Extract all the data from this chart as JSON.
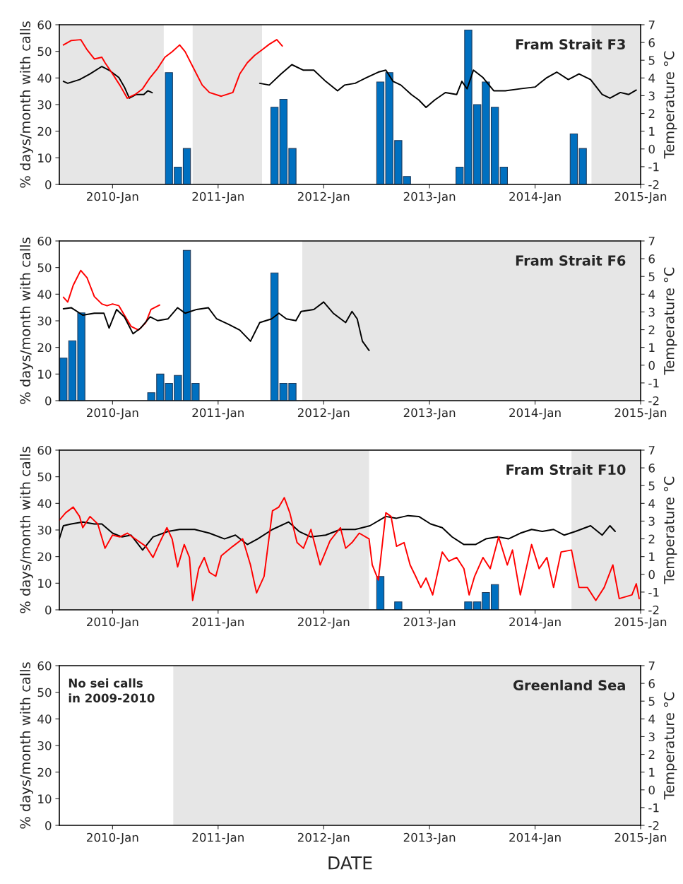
{
  "chart_data": [
    {
      "type": "bar",
      "title": "Fram Strait F3",
      "ylabel": "% days/month with calls",
      "y2label": "Temperature °C",
      "xlim": [
        "2009-07-01",
        "2015-01-01"
      ],
      "xticks": [
        {
          "value": "2010-01-01",
          "label": "2010-Jan"
        },
        {
          "value": "2011-01-01",
          "label": "2011-Jan"
        },
        {
          "value": "2012-01-01",
          "label": "2012-Jan"
        },
        {
          "value": "2013-01-01",
          "label": "2013-Jan"
        },
        {
          "value": "2014-01-01",
          "label": "2014-Jan"
        },
        {
          "value": "2015-01-01",
          "label": "2015-Jan"
        }
      ],
      "ylim": [
        0,
        60
      ],
      "yticks": [
        0,
        10,
        20,
        30,
        40,
        50,
        60
      ],
      "y2lim": [
        -2,
        7
      ],
      "y2ticks": [
        -2,
        -1,
        0,
        1,
        2,
        3,
        4,
        5,
        6,
        7
      ],
      "bands": [
        {
          "axis": "x",
          "from": "2009-07-01",
          "to": "2010-06-27",
          "color": "#e6e6e6"
        },
        {
          "axis": "x",
          "from": "2010-10-05",
          "to": "2011-06-02",
          "color": "#e6e6e6"
        },
        {
          "axis": "x",
          "from": "2014-07-15",
          "to": "2015-01-01",
          "color": "#e6e6e6"
        }
      ],
      "series": [
        {
          "color": "#0070c0",
          "x": [
            "2010-07-15",
            "2010-08-15",
            "2010-09-15",
            "2011-07-15",
            "2011-08-15",
            "2011-09-15",
            "2012-07-15",
            "2012-08-15",
            "2012-09-15",
            "2012-10-15",
            "2013-04-15",
            "2013-05-15",
            "2013-06-15",
            "2013-07-15",
            "2013-08-15",
            "2013-09-15",
            "2014-05-15",
            "2014-06-15"
          ],
          "values": [
            42,
            6.5,
            13.5,
            29,
            32,
            13.5,
            38.5,
            42,
            16.5,
            3,
            6.5,
            58,
            30,
            38.5,
            29,
            6.5,
            19,
            13.5
          ]
        },
        {
          "type": "line",
          "axis": "y2",
          "color": "#000000",
          "x": [
            "2009-07-15",
            "2009-07-30",
            "2009-09-09",
            "2009-10-15",
            "2009-11-25",
            "2009-12-20",
            "2010-01-23",
            "2010-02-11",
            "2010-02-28",
            "2010-03-24",
            "2010-04-19",
            "2010-05-03",
            "2010-05-18"
          ],
          "values": [
            3.81,
            3.7,
            3.91,
            4.23,
            4.65,
            4.44,
            4.02,
            3.49,
            2.86,
            3.07,
            3.07,
            3.28,
            3.17
          ]
        },
        {
          "type": "line",
          "axis": "y2",
          "color": "#ff0000",
          "x": [
            "2009-07-15",
            "2009-08-11",
            "2009-09-13",
            "2009-10-05",
            "2009-10-30",
            "2009-11-25",
            "2009-12-06",
            "2010-01-01",
            "2010-01-26",
            "2010-02-21",
            "2010-03-20",
            "2010-04-15",
            "2010-05-11",
            "2010-06-06",
            "2010-07-01",
            "2010-07-26",
            "2010-08-21",
            "2010-09-09",
            "2010-10-05",
            "2010-11-07",
            "2010-12-02",
            "2011-01-12",
            "2011-02-21",
            "2011-03-17",
            "2011-04-12",
            "2011-05-07",
            "2011-06-02",
            "2011-06-27",
            "2011-07-23",
            "2011-08-11"
          ],
          "values": [
            5.86,
            6.11,
            6.16,
            5.59,
            5.07,
            5.17,
            4.86,
            4.23,
            3.6,
            2.86,
            3.07,
            3.39,
            4.02,
            4.54,
            5.17,
            5.48,
            5.86,
            5.48,
            4.65,
            3.6,
            3.18,
            2.97,
            3.18,
            4.23,
            4.86,
            5.27,
            5.59,
            5.9,
            6.16,
            5.8
          ]
        },
        {
          "type": "line",
          "axis": "y2",
          "color": "#000000",
          "x": [
            "2011-05-25",
            "2011-06-27",
            "2011-08-07",
            "2011-09-13",
            "2011-10-23",
            "2011-11-28",
            "2012-01-08",
            "2012-02-18",
            "2012-03-13",
            "2012-04-19",
            "2012-05-28",
            "2012-07-08",
            "2012-08-03",
            "2012-08-28",
            "2012-09-24",
            "2012-10-30",
            "2012-11-25",
            "2012-12-20",
            "2013-01-19",
            "2013-02-25",
            "2013-04-05",
            "2013-04-23",
            "2013-05-11",
            "2013-06-02",
            "2013-07-05",
            "2013-08-11",
            "2013-09-20",
            "2013-11-11",
            "2014-01-01",
            "2014-02-11",
            "2014-03-17",
            "2014-04-26",
            "2014-06-02",
            "2014-07-12",
            "2014-08-21",
            "2014-09-17",
            "2014-10-23",
            "2014-11-21",
            "2014-12-17"
          ],
          "values": [
            3.7,
            3.6,
            4.23,
            4.75,
            4.44,
            4.44,
            3.81,
            3.28,
            3.6,
            3.7,
            4.02,
            4.33,
            4.44,
            3.81,
            3.6,
            3.07,
            2.76,
            2.34,
            2.76,
            3.18,
            3.07,
            3.81,
            3.39,
            4.44,
            4.02,
            3.28,
            3.28,
            3.39,
            3.49,
            4.02,
            4.33,
            3.91,
            4.23,
            3.91,
            3.07,
            2.86,
            3.18,
            3.07,
            3.32
          ]
        }
      ]
    },
    {
      "type": "bar",
      "title": "Fram Strait F6",
      "ylabel": "% days/month with calls",
      "y2label": "Temperature °C",
      "xlim": [
        "2009-07-01",
        "2015-01-01"
      ],
      "xticks": [
        {
          "value": "2010-01-01",
          "label": "2010-Jan"
        },
        {
          "value": "2011-01-01",
          "label": "2011-Jan"
        },
        {
          "value": "2012-01-01",
          "label": "2012-Jan"
        },
        {
          "value": "2013-01-01",
          "label": "2013-Jan"
        },
        {
          "value": "2014-01-01",
          "label": "2014-Jan"
        },
        {
          "value": "2015-01-01",
          "label": "2015-Jan"
        }
      ],
      "ylim": [
        0,
        60
      ],
      "yticks": [
        0,
        10,
        20,
        30,
        40,
        50,
        60
      ],
      "y2lim": [
        -2,
        7
      ],
      "y2ticks": [
        -2,
        -1,
        0,
        1,
        2,
        3,
        4,
        5,
        6,
        7
      ],
      "bands": [
        {
          "axis": "x",
          "from": "2011-10-19",
          "to": "2015-01-01",
          "color": "#e6e6e6"
        }
      ],
      "series": [
        {
          "color": "#0070c0",
          "x": [
            "2009-07-15",
            "2009-08-15",
            "2009-09-15",
            "2010-05-15",
            "2010-06-15",
            "2010-07-15",
            "2010-08-15",
            "2010-09-15",
            "2010-10-15",
            "2011-07-15",
            "2011-08-15",
            "2011-09-15"
          ],
          "values": [
            16,
            22.5,
            33,
            3,
            10,
            6.5,
            9.5,
            56.5,
            6.5,
            48,
            6.5,
            6.5
          ]
        },
        {
          "type": "line",
          "axis": "y2",
          "color": "#ff0000",
          "x": [
            "2009-07-15",
            "2009-07-30",
            "2009-08-18",
            "2009-09-13",
            "2009-10-05",
            "2009-10-30",
            "2009-11-25",
            "2009-12-13",
            "2010-01-01",
            "2010-01-23",
            "2010-02-11",
            "2010-03-06",
            "2010-04-01",
            "2010-04-26",
            "2010-05-14",
            "2010-06-13"
          ],
          "values": [
            3.83,
            3.56,
            4.5,
            5.34,
            4.92,
            3.87,
            3.45,
            3.35,
            3.45,
            3.35,
            2.82,
            2.19,
            1.98,
            2.4,
            3.14,
            3.39
          ]
        },
        {
          "type": "line",
          "axis": "y2",
          "color": "#000000",
          "x": [
            "2009-07-15",
            "2009-08-11",
            "2009-09-20",
            "2009-10-30",
            "2009-12-02",
            "2009-12-20",
            "2010-01-15",
            "2010-02-11",
            "2010-03-13",
            "2010-04-08",
            "2010-05-11",
            "2010-06-06",
            "2010-07-12",
            "2010-08-14",
            "2010-09-09",
            "2010-10-19",
            "2010-11-28",
            "2010-12-27",
            "2011-02-07",
            "2011-03-17",
            "2011-04-23",
            "2011-05-25",
            "2011-07-05",
            "2011-07-30",
            "2011-08-25",
            "2011-09-27",
            "2011-10-15",
            "2011-11-28",
            "2012-01-01",
            "2012-02-03",
            "2012-03-17",
            "2012-04-08",
            "2012-04-26",
            "2012-05-14",
            "2012-06-06"
          ],
          "values": [
            3.18,
            3.24,
            2.82,
            2.93,
            2.93,
            2.09,
            3.14,
            2.72,
            1.77,
            2.09,
            2.72,
            2.51,
            2.61,
            3.24,
            2.93,
            3.14,
            3.24,
            2.61,
            2.3,
            1.98,
            1.35,
            2.4,
            2.61,
            2.93,
            2.61,
            2.51,
            3.03,
            3.14,
            3.56,
            2.93,
            2.4,
            3.03,
            2.61,
            1.35,
            0.83
          ]
        }
      ]
    },
    {
      "type": "bar",
      "title": "Fram Strait F10",
      "ylabel": "% days/month with calls",
      "y2label": "Temperature °C",
      "xlim": [
        "2009-07-01",
        "2015-01-01"
      ],
      "xticks": [
        {
          "value": "2010-01-01",
          "label": "2010-Jan"
        },
        {
          "value": "2011-01-01",
          "label": "2011-Jan"
        },
        {
          "value": "2012-01-01",
          "label": "2012-Jan"
        },
        {
          "value": "2013-01-01",
          "label": "2013-Jan"
        },
        {
          "value": "2014-01-01",
          "label": "2014-Jan"
        },
        {
          "value": "2015-01-01",
          "label": "2015-Jan"
        }
      ],
      "ylim": [
        0,
        60
      ],
      "yticks": [
        0,
        10,
        20,
        30,
        40,
        50,
        60
      ],
      "y2lim": [
        -2,
        7
      ],
      "y2ticks": [
        -2,
        -1,
        0,
        1,
        2,
        3,
        4,
        5,
        6,
        7
      ],
      "bands": [
        {
          "axis": "x",
          "from": "2009-07-01",
          "to": "2012-06-06",
          "color": "#e6e6e6"
        },
        {
          "axis": "x",
          "from": "2014-05-07",
          "to": "2015-01-01",
          "color": "#e6e6e6"
        }
      ],
      "series": [
        {
          "color": "#0070c0",
          "x": [
            "2012-07-15",
            "2012-09-15",
            "2013-05-15",
            "2013-06-15",
            "2013-07-15",
            "2013-08-15"
          ],
          "values": [
            12.5,
            3,
            3,
            3,
            6.5,
            9.5
          ]
        },
        {
          "type": "line",
          "axis": "y2",
          "color": "#000000",
          "x": [
            "2009-07-01",
            "2009-07-15",
            "2009-08-11",
            "2009-09-20",
            "2009-10-30",
            "2009-11-25",
            "2010-01-01",
            "2010-02-03",
            "2010-03-06",
            "2010-04-15",
            "2010-05-21",
            "2010-07-12",
            "2010-08-21",
            "2010-10-12",
            "2010-12-02",
            "2011-01-23",
            "2011-03-02",
            "2011-04-12",
            "2011-05-18",
            "2011-07-08",
            "2011-09-02",
            "2011-10-08",
            "2011-11-18",
            "2012-01-08",
            "2012-02-28",
            "2012-04-19",
            "2012-06-09",
            "2012-08-03",
            "2012-09-09",
            "2012-10-19",
            "2012-11-25",
            "2013-01-05",
            "2013-02-14",
            "2013-03-20",
            "2013-04-30",
            "2013-06-09",
            "2013-07-15",
            "2013-08-25",
            "2013-10-01",
            "2013-11-11",
            "2013-12-20",
            "2014-01-26",
            "2014-03-06",
            "2014-04-12",
            "2014-05-21",
            "2014-07-12",
            "2014-08-21",
            "2014-09-17",
            "2014-10-05"
          ],
          "values": [
            2.0,
            2.74,
            2.84,
            2.95,
            2.84,
            2.84,
            2.32,
            2.11,
            2.21,
            1.37,
            2.11,
            2.42,
            2.53,
            2.53,
            2.32,
            2.0,
            2.21,
            1.68,
            2.0,
            2.53,
            2.95,
            2.42,
            2.11,
            2.21,
            2.53,
            2.53,
            2.74,
            3.26,
            3.16,
            3.31,
            3.26,
            2.84,
            2.63,
            2.11,
            1.68,
            1.68,
            2.0,
            2.11,
            2.0,
            2.32,
            2.53,
            2.42,
            2.53,
            2.21,
            2.42,
            2.74,
            2.21,
            2.74,
            2.42
          ]
        },
        {
          "type": "line",
          "axis": "y2",
          "color": "#ff0000",
          "x": [
            "2009-07-01",
            "2009-07-23",
            "2009-08-18",
            "2009-09-09",
            "2009-09-20",
            "2009-10-15",
            "2009-11-11",
            "2009-12-06",
            "2010-01-01",
            "2010-01-26",
            "2010-02-21",
            "2010-03-20",
            "2010-04-26",
            "2010-05-21",
            "2010-06-13",
            "2010-07-08",
            "2010-07-26",
            "2010-08-14",
            "2010-09-06",
            "2010-09-24",
            "2010-10-05",
            "2010-10-26",
            "2010-11-14",
            "2010-12-02",
            "2010-12-24",
            "2011-01-12",
            "2011-02-21",
            "2011-03-27",
            "2011-04-23",
            "2011-05-14",
            "2011-06-09",
            "2011-07-08",
            "2011-07-30",
            "2011-08-18",
            "2011-09-06",
            "2011-10-01",
            "2011-10-23",
            "2011-11-18",
            "2011-12-20",
            "2012-01-23",
            "2012-02-28",
            "2012-03-17",
            "2012-04-08",
            "2012-05-03",
            "2012-06-06",
            "2012-06-17",
            "2012-07-08",
            "2012-08-03",
            "2012-08-21",
            "2012-09-09",
            "2012-10-05",
            "2012-10-26",
            "2012-11-14",
            "2012-12-02",
            "2012-12-20",
            "2013-01-12",
            "2013-02-14",
            "2013-03-09",
            "2013-04-05",
            "2013-04-30",
            "2013-05-18",
            "2013-06-06",
            "2013-07-05",
            "2013-07-30",
            "2013-08-28",
            "2013-09-27",
            "2013-10-15",
            "2013-11-11",
            "2013-12-20",
            "2014-01-15",
            "2014-02-11",
            "2014-03-06",
            "2014-04-01",
            "2014-05-07",
            "2014-06-02",
            "2014-07-01",
            "2014-07-30",
            "2014-08-28",
            "2014-09-27",
            "2014-10-19",
            "2014-12-02",
            "2014-12-17",
            "2014-12-27"
          ],
          "values": [
            3.05,
            3.47,
            3.79,
            3.26,
            2.63,
            3.26,
            2.84,
            1.47,
            2.21,
            2.11,
            2.32,
            2.0,
            1.58,
            0.95,
            1.79,
            2.63,
            2.0,
            0.42,
            1.68,
            0.95,
            -1.47,
            0.32,
            0.95,
            0.11,
            -0.11,
            1.05,
            1.58,
            2.0,
            0.53,
            -1.05,
            -0.11,
            3.58,
            3.79,
            4.32,
            3.47,
            1.79,
            1.47,
            2.53,
            0.53,
            1.89,
            2.63,
            1.47,
            1.79,
            2.32,
            2.0,
            0.53,
            -0.32,
            3.47,
            3.26,
            1.58,
            1.79,
            0.53,
            -0.11,
            -0.74,
            -0.21,
            -1.16,
            1.26,
            0.74,
            0.95,
            0.32,
            -1.16,
            -0.11,
            0.95,
            0.32,
            2.11,
            0.53,
            1.37,
            -1.16,
            1.68,
            0.32,
            0.95,
            -0.74,
            1.26,
            1.37,
            -0.74,
            -0.74,
            -1.47,
            -0.74,
            0.53,
            -1.37,
            -1.16,
            -0.53,
            -1.37
          ]
        }
      ]
    },
    {
      "type": "bar",
      "title": "Greenland Sea",
      "ylabel": "% days/month with calls",
      "y2label": "Temperature °C",
      "xlabel": "DATE",
      "annotations": [
        "No sei calls\nin 2009-2010"
      ],
      "xlim": [
        "2009-07-01",
        "2015-01-01"
      ],
      "xticks": [
        {
          "value": "2010-01-01",
          "label": "2010-Jan"
        },
        {
          "value": "2011-01-01",
          "label": "2011-Jan"
        },
        {
          "value": "2012-01-01",
          "label": "2012-Jan"
        },
        {
          "value": "2013-01-01",
          "label": "2013-Jan"
        },
        {
          "value": "2014-01-01",
          "label": "2014-Jan"
        },
        {
          "value": "2015-01-01",
          "label": "2015-Jan"
        }
      ],
      "ylim": [
        0,
        60
      ],
      "yticks": [
        0,
        10,
        20,
        30,
        40,
        50,
        60
      ],
      "y2lim": [
        -2,
        7
      ],
      "y2ticks": [
        -2,
        -1,
        0,
        1,
        2,
        3,
        4,
        5,
        6,
        7
      ],
      "bands": [
        {
          "axis": "x",
          "from": "2010-07-30",
          "to": "2015-01-01",
          "color": "#e6e6e6"
        }
      ]
    }
  ]
}
